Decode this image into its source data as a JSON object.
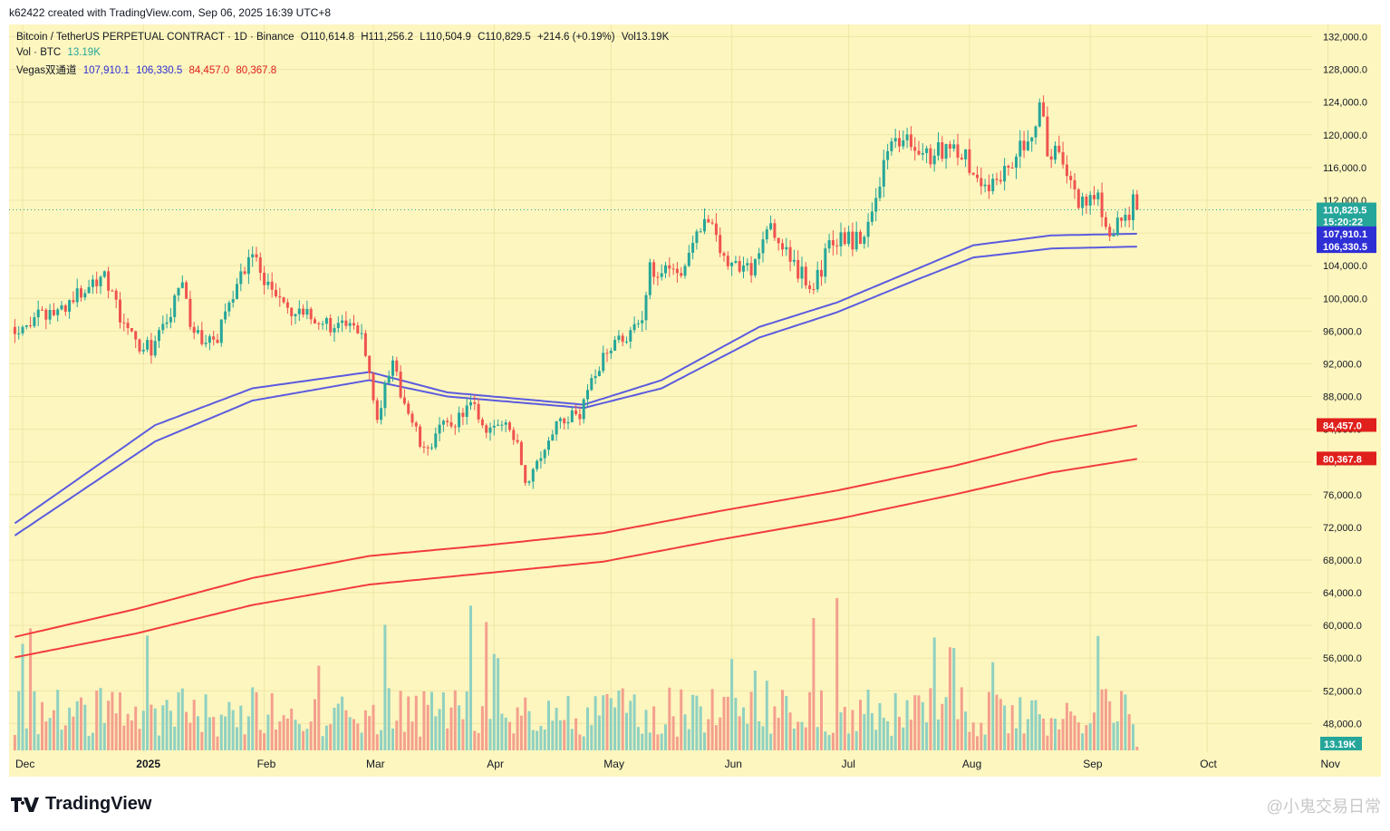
{
  "credit": "k62422 created with TradingView.com, Sep 06, 2025 16:39 UTC+8",
  "legend": {
    "symbol": "Bitcoin / TetherUS PERPETUAL CONTRACT · 1D · Binance",
    "open": "O110,614.8",
    "high": "H111,256.2",
    "low": "L110,504.9",
    "close": "C110,829.5",
    "change": "+214.6 (+0.19%)",
    "vol": "Vol13.19K",
    "vol_label": "Vol · BTC",
    "vol_value": "13.19K",
    "vegas_label": "Vegas双通道",
    "vegas_1": "107,910.1",
    "vegas_2": "106,330.5",
    "vegas_3": "84,457.0",
    "vegas_4": "80,367.8"
  },
  "price_tags": {
    "last_price": "110,829.5",
    "countdown": "15:20:22",
    "ema_blue_1": "107,910.1",
    "ema_blue_2": "106,330.5",
    "ema_red_1": "84,457.0",
    "ema_red_2": "80,367.8",
    "volume": "13.19K"
  },
  "colors": {
    "up": "#26a69a",
    "down": "#ef5350",
    "blue_channel": "#5b5bdf",
    "red_channel": "#f23c3c",
    "background": "#fdf6bf"
  },
  "footer": {
    "logo": "TradingView",
    "watermark": "@小鬼交易日常"
  },
  "chart_data": {
    "type": "candlestick",
    "y_ticks": [
      48000,
      52000,
      56000,
      60000,
      64000,
      68000,
      72000,
      76000,
      80000,
      84000,
      88000,
      92000,
      96000,
      100000,
      104000,
      108000,
      112000,
      116000,
      120000,
      124000,
      128000,
      132000
    ],
    "y_tick_labels": [
      "48,000.0",
      "52,000.0",
      "56,000.0",
      "60,000.0",
      "64,000.0",
      "68,000.0",
      "72,000.0",
      "76,000.0",
      "80,000.0",
      "84,000.0",
      "88,000.0",
      "92,000.0",
      "96,000.0",
      "100,000.0",
      "104,000.0",
      "108,000.0",
      "112,000.0",
      "116,000.0",
      "120,000.0",
      "124,000.0",
      "128,000.0",
      "132,000.0"
    ],
    "x_ticks": [
      {
        "label": "Dec",
        "day": 1
      },
      {
        "label": "2025",
        "day": 32
      },
      {
        "label": "Feb",
        "day": 63
      },
      {
        "label": "Mar",
        "day": 91
      },
      {
        "label": "Apr",
        "day": 122
      },
      {
        "label": "May",
        "day": 152
      },
      {
        "label": "Jun",
        "day": 183
      },
      {
        "label": "Jul",
        "day": 213
      },
      {
        "label": "Aug",
        "day": 244
      },
      {
        "label": "Sep",
        "day": 275
      },
      {
        "label": "Oct",
        "day": 305
      },
      {
        "label": "Nov",
        "day": 336
      }
    ],
    "ylim": [
      44500,
      133500
    ],
    "last_price": 110829.5,
    "price_path": [
      [
        -1,
        96500
      ],
      [
        10,
        98500
      ],
      [
        18,
        101500
      ],
      [
        22,
        103500
      ],
      [
        26,
        97500
      ],
      [
        30,
        94500
      ],
      [
        34,
        94000
      ],
      [
        38,
        97000
      ],
      [
        42,
        102000
      ],
      [
        44,
        96500
      ],
      [
        50,
        94000
      ],
      [
        54,
        100000
      ],
      [
        60,
        105500
      ],
      [
        64,
        101500
      ],
      [
        70,
        98000
      ],
      [
        76,
        97500
      ],
      [
        82,
        96500
      ],
      [
        88,
        96000
      ],
      [
        92,
        86000
      ],
      [
        96,
        91500
      ],
      [
        100,
        86000
      ],
      [
        104,
        81000
      ],
      [
        108,
        84000
      ],
      [
        112,
        85000
      ],
      [
        116,
        87000
      ],
      [
        120,
        84000
      ],
      [
        124,
        84500
      ],
      [
        128,
        83000
      ],
      [
        130,
        77500
      ],
      [
        133,
        80000
      ],
      [
        137,
        84000
      ],
      [
        141,
        85500
      ],
      [
        144,
        86000
      ],
      [
        146,
        88000
      ],
      [
        150,
        93500
      ],
      [
        154,
        95000
      ],
      [
        158,
        96000
      ],
      [
        160,
        97000
      ],
      [
        162,
        103500
      ],
      [
        166,
        104000
      ],
      [
        170,
        103500
      ],
      [
        174,
        108000
      ],
      [
        176,
        110500
      ],
      [
        180,
        106000
      ],
      [
        184,
        104000
      ],
      [
        188,
        103500
      ],
      [
        192,
        109000
      ],
      [
        196,
        106000
      ],
      [
        200,
        103500
      ],
      [
        204,
        101000
      ],
      [
        208,
        106500
      ],
      [
        212,
        107500
      ],
      [
        214,
        107000
      ],
      [
        218,
        108500
      ],
      [
        222,
        117000
      ],
      [
        226,
        119500
      ],
      [
        230,
        118000
      ],
      [
        234,
        117500
      ],
      [
        238,
        118500
      ],
      [
        242,
        118000
      ],
      [
        244,
        116000
      ],
      [
        248,
        113500
      ],
      [
        252,
        115000
      ],
      [
        256,
        117500
      ],
      [
        260,
        121000
      ],
      [
        262,
        123500
      ],
      [
        264,
        118500
      ],
      [
        268,
        117000
      ],
      [
        272,
        111500
      ],
      [
        276,
        113000
      ],
      [
        280,
        108500
      ],
      [
        284,
        110000
      ],
      [
        286,
        111500
      ],
      [
        287,
        110829
      ]
    ],
    "channels": [
      {
        "name": "blue_upper",
        "color": "#5b5bdf",
        "points": [
          [
            -1,
            72500
          ],
          [
            35,
            84500
          ],
          [
            60,
            89000
          ],
          [
            90,
            91000
          ],
          [
            110,
            88500
          ],
          [
            145,
            87000
          ],
          [
            165,
            90000
          ],
          [
            190,
            96500
          ],
          [
            210,
            99500
          ],
          [
            230,
            103500
          ],
          [
            245,
            106500
          ],
          [
            265,
            107700
          ],
          [
            287,
            107910
          ]
        ]
      },
      {
        "name": "blue_lower",
        "color": "#5b5bdf",
        "points": [
          [
            -1,
            71000
          ],
          [
            35,
            82500
          ],
          [
            60,
            87500
          ],
          [
            90,
            90000
          ],
          [
            110,
            88000
          ],
          [
            145,
            86600
          ],
          [
            165,
            89000
          ],
          [
            190,
            95200
          ],
          [
            210,
            98300
          ],
          [
            230,
            102200
          ],
          [
            245,
            105000
          ],
          [
            265,
            106100
          ],
          [
            287,
            106330
          ]
        ]
      },
      {
        "name": "red_upper",
        "color": "#f23c3c",
        "points": [
          [
            -1,
            58600
          ],
          [
            30,
            62000
          ],
          [
            60,
            65800
          ],
          [
            90,
            68500
          ],
          [
            120,
            69800
          ],
          [
            150,
            71300
          ],
          [
            180,
            74000
          ],
          [
            210,
            76500
          ],
          [
            240,
            79500
          ],
          [
            265,
            82500
          ],
          [
            287,
            84457
          ]
        ]
      },
      {
        "name": "red_lower",
        "color": "#f23c3c",
        "points": [
          [
            -1,
            56100
          ],
          [
            30,
            59000
          ],
          [
            60,
            62500
          ],
          [
            90,
            65000
          ],
          [
            120,
            66400
          ],
          [
            150,
            67800
          ],
          [
            180,
            70500
          ],
          [
            210,
            73000
          ],
          [
            240,
            76000
          ],
          [
            265,
            78700
          ],
          [
            287,
            80368
          ]
        ]
      }
    ]
  }
}
